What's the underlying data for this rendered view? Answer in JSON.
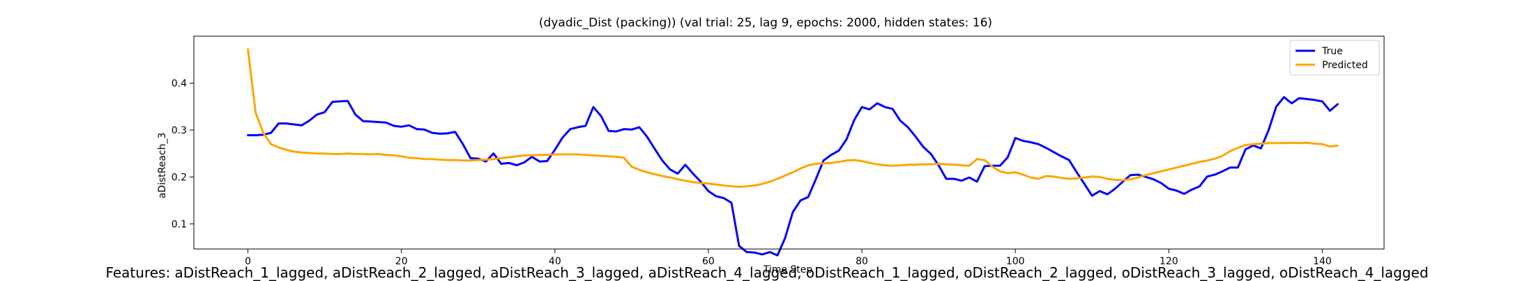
{
  "footer_text": "Features: aDistReach_1_lagged, aDistReach_2_lagged, aDistReach_3_lagged, aDistReach_4_lagged, oDistReach_1_lagged, oDistReach_2_lagged, oDistReach_3_lagged, oDistReach_4_lagged",
  "chart_data": {
    "type": "line",
    "title": "(dyadic_Dist (packing)) (val trial: 25, lag 9, epochs: 2000, hidden states: 16)",
    "xlabel": "Time Step",
    "ylabel": "aDistReach_3",
    "xlim": [
      -7.05,
      148.05
    ],
    "ylim": [
      0.0465,
      0.5
    ],
    "x_ticks": [
      0,
      20,
      40,
      60,
      80,
      100,
      120,
      140
    ],
    "y_ticks": [
      0.1,
      0.2,
      0.3,
      0.4
    ],
    "grid": false,
    "legend_position": "top-right",
    "series": [
      {
        "name": "True",
        "color": "#0000ff",
        "values": [
          0.289,
          0.289,
          0.29,
          0.294,
          0.314,
          0.314,
          0.312,
          0.31,
          0.32,
          0.333,
          0.338,
          0.36,
          0.361,
          0.362,
          0.333,
          0.319,
          0.318,
          0.317,
          0.316,
          0.309,
          0.307,
          0.31,
          0.302,
          0.301,
          0.294,
          0.292,
          0.293,
          0.296,
          0.27,
          0.24,
          0.239,
          0.233,
          0.25,
          0.228,
          0.23,
          0.225,
          0.231,
          0.243,
          0.233,
          0.234,
          0.258,
          0.284,
          0.302,
          0.306,
          0.309,
          0.349,
          0.33,
          0.298,
          0.297,
          0.302,
          0.301,
          0.306,
          0.286,
          0.26,
          0.235,
          0.216,
          0.207,
          0.226,
          0.207,
          0.19,
          0.17,
          0.159,
          0.155,
          0.145,
          0.053,
          0.04,
          0.039,
          0.035,
          0.04,
          0.033,
          0.07,
          0.125,
          0.15,
          0.157,
          0.195,
          0.235,
          0.247,
          0.256,
          0.28,
          0.321,
          0.349,
          0.344,
          0.357,
          0.349,
          0.345,
          0.32,
          0.306,
          0.286,
          0.264,
          0.249,
          0.225,
          0.196,
          0.196,
          0.192,
          0.199,
          0.19,
          0.223,
          0.224,
          0.224,
          0.242,
          0.283,
          0.277,
          0.274,
          0.27,
          0.262,
          0.253,
          0.244,
          0.236,
          0.21,
          0.185,
          0.16,
          0.17,
          0.163,
          0.175,
          0.19,
          0.204,
          0.205,
          0.2,
          0.195,
          0.187,
          0.175,
          0.171,
          0.164,
          0.173,
          0.18,
          0.201,
          0.205,
          0.212,
          0.22,
          0.22,
          0.259,
          0.267,
          0.261,
          0.3,
          0.35,
          0.37,
          0.357,
          0.368,
          0.366,
          0.364,
          0.361,
          0.341,
          0.355
        ]
      },
      {
        "name": "Predicted",
        "color": "#ffa500",
        "values": [
          0.472,
          0.337,
          0.294,
          0.27,
          0.263,
          0.258,
          0.254,
          0.252,
          0.251,
          0.25,
          0.25,
          0.249,
          0.249,
          0.25,
          0.249,
          0.249,
          0.248,
          0.249,
          0.247,
          0.246,
          0.244,
          0.241,
          0.24,
          0.238,
          0.238,
          0.237,
          0.236,
          0.236,
          0.235,
          0.235,
          0.236,
          0.237,
          0.238,
          0.24,
          0.242,
          0.244,
          0.246,
          0.246,
          0.247,
          0.247,
          0.248,
          0.248,
          0.248,
          0.248,
          0.247,
          0.246,
          0.245,
          0.244,
          0.243,
          0.241,
          0.222,
          0.215,
          0.21,
          0.206,
          0.202,
          0.199,
          0.195,
          0.192,
          0.189,
          0.187,
          0.186,
          0.184,
          0.182,
          0.18,
          0.179,
          0.18,
          0.182,
          0.185,
          0.19,
          0.196,
          0.203,
          0.21,
          0.218,
          0.225,
          0.228,
          0.229,
          0.23,
          0.232,
          0.235,
          0.236,
          0.234,
          0.23,
          0.227,
          0.225,
          0.224,
          0.225,
          0.226,
          0.226,
          0.227,
          0.227,
          0.228,
          0.227,
          0.226,
          0.225,
          0.224,
          0.238,
          0.236,
          0.222,
          0.212,
          0.208,
          0.21,
          0.205,
          0.199,
          0.196,
          0.202,
          0.201,
          0.198,
          0.196,
          0.197,
          0.199,
          0.201,
          0.2,
          0.196,
          0.194,
          0.193,
          0.195,
          0.199,
          0.204,
          0.208,
          0.212,
          0.216,
          0.22,
          0.224,
          0.228,
          0.232,
          0.235,
          0.239,
          0.245,
          0.255,
          0.262,
          0.268,
          0.27,
          0.271,
          0.272,
          0.272,
          0.272,
          0.273,
          0.272,
          0.273,
          0.271,
          0.27,
          0.265,
          0.267
        ]
      }
    ]
  }
}
